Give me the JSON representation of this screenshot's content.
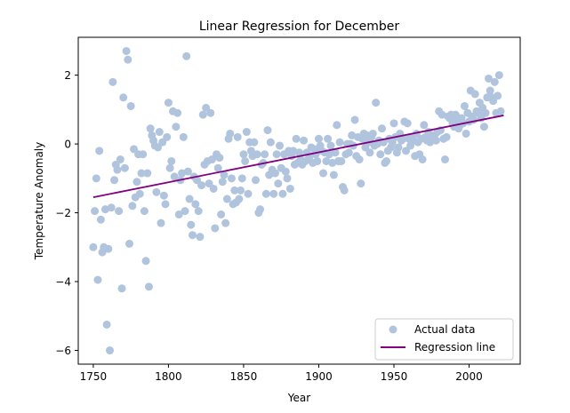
{
  "chart_data": {
    "type": "scatter",
    "title": "Linear Regression for December",
    "xlabel": "Year",
    "ylabel": "Temperature Anomaly",
    "xlim": [
      1740,
      2034
    ],
    "ylim": [
      -6.4,
      3.1
    ],
    "xticks": [
      1750,
      1800,
      1850,
      1900,
      1950,
      2000
    ],
    "yticks": [
      -6,
      -4,
      -2,
      0,
      2
    ],
    "grid": false,
    "legend_position": "bottom-right",
    "series": [
      {
        "name": "Actual data",
        "kind": "scatter",
        "color": "#b0c4de",
        "points": [
          [
            1750,
            -3.0
          ],
          [
            1751,
            -1.95
          ],
          [
            1752,
            -1.0
          ],
          [
            1753,
            -3.95
          ],
          [
            1754,
            -0.2
          ],
          [
            1755,
            -2.2
          ],
          [
            1756,
            -3.15
          ],
          [
            1757,
            -3.0
          ],
          [
            1758,
            -1.9
          ],
          [
            1759,
            -5.25
          ],
          [
            1760,
            -3.05
          ],
          [
            1761,
            -6.0
          ],
          [
            1762,
            -1.85
          ],
          [
            1763,
            1.8
          ],
          [
            1764,
            -1.05
          ],
          [
            1765,
            -0.6
          ],
          [
            1766,
            -0.75
          ],
          [
            1767,
            -1.95
          ],
          [
            1768,
            -0.45
          ],
          [
            1769,
            -4.2
          ],
          [
            1770,
            1.35
          ],
          [
            1771,
            -0.7
          ],
          [
            1772,
            2.7
          ],
          [
            1773,
            2.45
          ],
          [
            1774,
            -2.9
          ],
          [
            1775,
            1.1
          ],
          [
            1776,
            -1.8
          ],
          [
            1777,
            -0.15
          ],
          [
            1778,
            -1.55
          ],
          [
            1779,
            -1.1
          ],
          [
            1780,
            -0.3
          ],
          [
            1781,
            -1.45
          ],
          [
            1782,
            -0.85
          ],
          [
            1783,
            -0.3
          ],
          [
            1784,
            -1.95
          ],
          [
            1785,
            -3.4
          ],
          [
            1786,
            -0.85
          ],
          [
            1787,
            -4.15
          ],
          [
            1788,
            0.45
          ],
          [
            1789,
            0.25
          ],
          [
            1790,
            0.1
          ],
          [
            1791,
            -0.05
          ],
          [
            1792,
            -1.4
          ],
          [
            1793,
            -0.1
          ],
          [
            1794,
            0.35
          ],
          [
            1795,
            -2.3
          ],
          [
            1796,
            0.05
          ],
          [
            1797,
            -1.5
          ],
          [
            1798,
            -1.75
          ],
          [
            1799,
            0.2
          ],
          [
            1800,
            1.2
          ],
          [
            1801,
            -0.7
          ],
          [
            1802,
            -0.5
          ],
          [
            1803,
            0.95
          ],
          [
            1804,
            -0.95
          ],
          [
            1805,
            0.5
          ],
          [
            1806,
            0.9
          ],
          [
            1807,
            -2.05
          ],
          [
            1808,
            -1.05
          ],
          [
            1809,
            -0.85
          ],
          [
            1810,
            0.2
          ],
          [
            1811,
            -1.95
          ],
          [
            1812,
            2.55
          ],
          [
            1813,
            -0.8
          ],
          [
            1814,
            -1.6
          ],
          [
            1815,
            -2.35
          ],
          [
            1816,
            -2.65
          ],
          [
            1817,
            -0.95
          ],
          [
            1818,
            -1.75
          ],
          [
            1819,
            -1.05
          ],
          [
            1820,
            -1.95
          ],
          [
            1821,
            -2.7
          ],
          [
            1822,
            -1.2
          ],
          [
            1823,
            0.85
          ],
          [
            1824,
            -0.6
          ],
          [
            1825,
            1.05
          ],
          [
            1826,
            -0.5
          ],
          [
            1827,
            -1.15
          ],
          [
            1828,
            0.9
          ],
          [
            1829,
            -0.45
          ],
          [
            1830,
            -1.3
          ],
          [
            1831,
            -2.45
          ],
          [
            1832,
            -0.3
          ],
          [
            1833,
            -0.7
          ],
          [
            1834,
            -0.4
          ],
          [
            1835,
            -2.05
          ],
          [
            1836,
            -1.1
          ],
          [
            1837,
            -0.9
          ],
          [
            1838,
            -2.3
          ],
          [
            1839,
            -1.6
          ],
          [
            1840,
            0.15
          ],
          [
            1841,
            0.3
          ],
          [
            1842,
            -1.0
          ],
          [
            1843,
            -1.75
          ],
          [
            1844,
            -1.35
          ],
          [
            1845,
            -1.7
          ],
          [
            1846,
            0.2
          ],
          [
            1847,
            -1.6
          ],
          [
            1848,
            -1.35
          ],
          [
            1849,
            -1.0
          ],
          [
            1850,
            -0.3
          ],
          [
            1851,
            -0.5
          ],
          [
            1852,
            0.35
          ],
          [
            1853,
            -1.45
          ],
          [
            1854,
            0.05
          ],
          [
            1855,
            -0.2
          ],
          [
            1856,
            -0.35
          ],
          [
            1857,
            0.05
          ],
          [
            1858,
            -1.05
          ],
          [
            1859,
            -0.3
          ],
          [
            1860,
            -2.0
          ],
          [
            1861,
            -1.9
          ],
          [
            1862,
            -0.6
          ],
          [
            1863,
            -0.55
          ],
          [
            1864,
            -0.3
          ],
          [
            1865,
            -1.45
          ],
          [
            1866,
            0.4
          ],
          [
            1867,
            -0.9
          ],
          [
            1868,
            0.05
          ],
          [
            1869,
            -0.75
          ],
          [
            1870,
            -1.45
          ],
          [
            1871,
            -0.85
          ],
          [
            1872,
            -0.3
          ],
          [
            1873,
            -1.15
          ],
          [
            1874,
            -0.05
          ],
          [
            1875,
            -0.7
          ],
          [
            1876,
            -1.45
          ],
          [
            1877,
            -0.3
          ],
          [
            1878,
            -0.8
          ],
          [
            1879,
            -1.0
          ],
          [
            1880,
            -0.2
          ],
          [
            1881,
            -1.3
          ],
          [
            1882,
            -0.35
          ],
          [
            1883,
            -0.2
          ],
          [
            1884,
            -0.6
          ],
          [
            1885,
            0.15
          ],
          [
            1886,
            -0.55
          ],
          [
            1887,
            -0.25
          ],
          [
            1888,
            -0.45
          ],
          [
            1889,
            -0.6
          ],
          [
            1890,
            0.1
          ],
          [
            1891,
            -0.5
          ],
          [
            1892,
            -0.25
          ],
          [
            1893,
            -0.45
          ],
          [
            1894,
            -0.35
          ],
          [
            1895,
            -0.1
          ],
          [
            1896,
            -0.55
          ],
          [
            1897,
            -0.15
          ],
          [
            1898,
            -0.3
          ],
          [
            1899,
            -0.5
          ],
          [
            1900,
            0.15
          ],
          [
            1901,
            -0.05
          ],
          [
            1902,
            -0.2
          ],
          [
            1903,
            -0.85
          ],
          [
            1904,
            -0.25
          ],
          [
            1905,
            -0.5
          ],
          [
            1906,
            0.15
          ],
          [
            1907,
            -0.3
          ],
          [
            1908,
            -0.05
          ],
          [
            1909,
            -0.55
          ],
          [
            1910,
            -0.9
          ],
          [
            1911,
            -0.25
          ],
          [
            1912,
            0.55
          ],
          [
            1913,
            -0.5
          ],
          [
            1914,
            0.05
          ],
          [
            1915,
            -0.5
          ],
          [
            1916,
            -1.25
          ],
          [
            1917,
            -1.35
          ],
          [
            1918,
            -0.3
          ],
          [
            1919,
            0.0
          ],
          [
            1920,
            -0.25
          ],
          [
            1921,
            0.0
          ],
          [
            1922,
            0.25
          ],
          [
            1923,
            -0.05
          ],
          [
            1924,
            0.7
          ],
          [
            1925,
            -0.35
          ],
          [
            1926,
            0.2
          ],
          [
            1927,
            -0.45
          ],
          [
            1928,
            -1.15
          ],
          [
            1929,
            0.15
          ],
          [
            1930,
            0.3
          ],
          [
            1931,
            -0.1
          ],
          [
            1932,
            0.25
          ],
          [
            1933,
            0.05
          ],
          [
            1934,
            -0.25
          ],
          [
            1935,
            0.2
          ],
          [
            1936,
            0.3
          ],
          [
            1937,
            -0.05
          ],
          [
            1938,
            1.2
          ],
          [
            1939,
            0.0
          ],
          [
            1940,
            0.1
          ],
          [
            1941,
            -0.3
          ],
          [
            1942,
            0.45
          ],
          [
            1943,
            0.05
          ],
          [
            1944,
            -0.55
          ],
          [
            1945,
            -0.5
          ],
          [
            1946,
            -0.2
          ],
          [
            1947,
            0.15
          ],
          [
            1948,
            -0.1
          ],
          [
            1949,
            0.05
          ],
          [
            1950,
            0.6
          ],
          [
            1951,
            0.2
          ],
          [
            1952,
            -0.25
          ],
          [
            1953,
            -0.1
          ],
          [
            1954,
            0.3
          ],
          [
            1955,
            0.1
          ],
          [
            1956,
            0.15
          ],
          [
            1957,
            0.65
          ],
          [
            1958,
            -0.2
          ],
          [
            1959,
            0.6
          ],
          [
            1960,
            0.15
          ],
          [
            1961,
            -0.05
          ],
          [
            1962,
            0.2
          ],
          [
            1963,
            0.1
          ],
          [
            1964,
            -0.35
          ],
          [
            1965,
            0.3
          ],
          [
            1966,
            0.05
          ],
          [
            1967,
            -0.3
          ],
          [
            1968,
            0.15
          ],
          [
            1969,
            -0.45
          ],
          [
            1970,
            0.55
          ],
          [
            1971,
            0.2
          ],
          [
            1972,
            0.1
          ],
          [
            1973,
            0.35
          ],
          [
            1974,
            0.05
          ],
          [
            1975,
            0.2
          ],
          [
            1976,
            0.15
          ],
          [
            1977,
            0.25
          ],
          [
            1978,
            0.1
          ],
          [
            1979,
            0.35
          ],
          [
            1980,
            0.95
          ],
          [
            1981,
            0.4
          ],
          [
            1982,
            0.85
          ],
          [
            1983,
            0.15
          ],
          [
            1984,
            -0.45
          ],
          [
            1985,
            0.2
          ],
          [
            1986,
            0.8
          ],
          [
            1987,
            0.75
          ],
          [
            1988,
            0.85
          ],
          [
            1989,
            0.6
          ],
          [
            1990,
            0.5
          ],
          [
            1991,
            0.85
          ],
          [
            1992,
            0.7
          ],
          [
            1993,
            0.45
          ],
          [
            1994,
            0.55
          ],
          [
            1995,
            0.75
          ],
          [
            1996,
            0.6
          ],
          [
            1997,
            1.1
          ],
          [
            1998,
            0.3
          ],
          [
            1999,
            0.9
          ],
          [
            2000,
            0.65
          ],
          [
            2001,
            1.55
          ],
          [
            2002,
            0.8
          ],
          [
            2003,
            0.7
          ],
          [
            2004,
            1.45
          ],
          [
            2005,
            0.95
          ],
          [
            2006,
            0.9
          ],
          [
            2007,
            1.2
          ],
          [
            2008,
            0.75
          ],
          [
            2009,
            1.05
          ],
          [
            2010,
            0.5
          ],
          [
            2011,
            0.9
          ],
          [
            2012,
            1.35
          ],
          [
            2013,
            1.9
          ],
          [
            2014,
            1.55
          ],
          [
            2015,
            1.35
          ],
          [
            2016,
            1.25
          ],
          [
            2017,
            1.8
          ],
          [
            2018,
            0.9
          ],
          [
            2019,
            1.4
          ],
          [
            2020,
            2.0
          ],
          [
            2021,
            0.95
          ]
        ]
      },
      {
        "name": "Regression line",
        "kind": "line",
        "color": "#800080",
        "points": [
          [
            1750,
            -1.55
          ],
          [
            2023,
            0.83
          ]
        ]
      }
    ]
  }
}
